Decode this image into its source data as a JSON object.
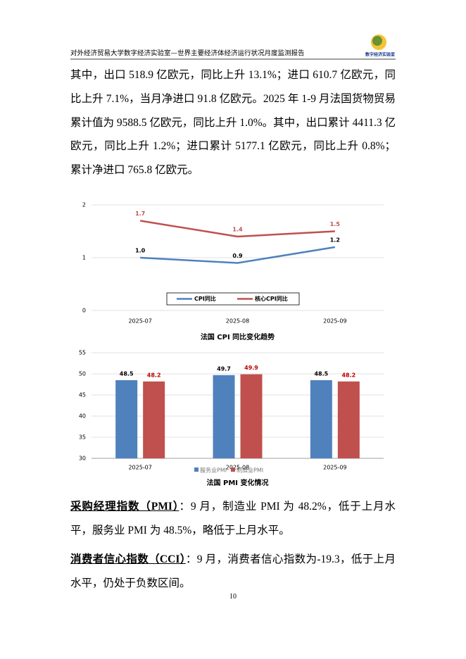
{
  "header": {
    "title": "对外经济贸易大学数字经济实验室—世界主要经济体经济运行状况月度监测报告",
    "logo_text": "数字经济实验室"
  },
  "paragraphs": [
    {
      "text": "其中，出口 518.9 亿欧元，同比上升 13.1%；进口 610.7 亿欧元，同比上升 7.1%，当月净进口 91.8 亿欧元。2025 年 1-9 月法国货物贸易累计值为 9588.5 亿欧元，同比上升 1.0%。其中，出口累计 4411.3 亿欧元，同比上升 1.2%；进口累计 5177.1 亿欧元，同比上升 0.8%；累计净进口 765.8 亿欧元。"
    },
    {
      "heading": "采购经理指数（PMI）",
      "text": "：9 月，制造业 PMI 为 48.2%，低于上月水平，服务业 PMI 为 48.5%，略低于上月水平。"
    },
    {
      "heading": "消费者信心指数（CCI）",
      "text": "：9 月，消费者信心指数为-19.3，低于上月水平，仍处于负数区间。"
    }
  ],
  "chart_data": [
    {
      "type": "line",
      "title": "法国 CPI 同比变化趋势",
      "categories": [
        "2025-07",
        "2025-08",
        "2025-09"
      ],
      "series": [
        {
          "name": "CPI同比",
          "color": "#4f81bd",
          "values": [
            1.0,
            0.9,
            1.2
          ],
          "value_labels": [
            "1.0",
            "0.9",
            "1.2"
          ],
          "label_color": "#000000"
        },
        {
          "name": "核心CPI同比",
          "color": "#c0504d",
          "values": [
            1.7,
            1.4,
            1.5
          ],
          "label_color": "#c0504d"
        }
      ],
      "ylim": [
        0,
        2
      ],
      "yticks": [
        0,
        1,
        2
      ],
      "grid": true
    },
    {
      "type": "bar",
      "title": "法国 PMI 变化情况",
      "categories": [
        "2025-07",
        "2025-08",
        "2025-09"
      ],
      "series": [
        {
          "name": "服务业PMI",
          "color": "#4f81bd",
          "values": [
            48.5,
            49.7,
            48.5
          ],
          "label_color": "#000000"
        },
        {
          "name": "制造业PMI",
          "color": "#c0504d",
          "values": [
            48.2,
            49.9,
            48.2
          ],
          "label_color": "#c00000"
        }
      ],
      "ylim": [
        30,
        55
      ],
      "yticks": [
        30,
        35,
        40,
        45,
        50,
        55
      ],
      "grid": true
    }
  ],
  "page_number": "10"
}
